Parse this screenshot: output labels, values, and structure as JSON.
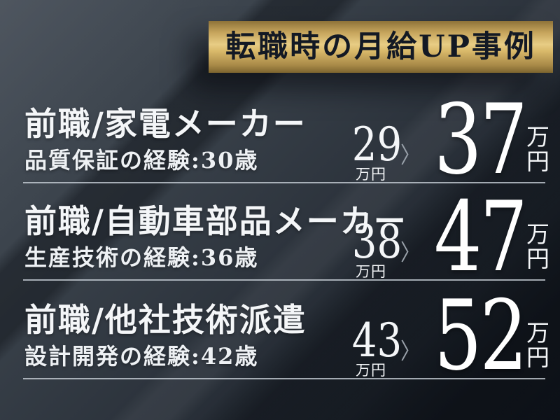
{
  "banner": {
    "title": "転職時の月給UP事例"
  },
  "arrow_glyph": "〉",
  "cases": [
    {
      "previous_job": "前職/家電メーカー",
      "experience": "品質保証の経験:30歳",
      "before_amount": "29",
      "before_unit": "万円",
      "after_amount": "37",
      "after_unit_top": "万",
      "after_unit_bottom": "円"
    },
    {
      "previous_job": "前職/自動車部品メーカー",
      "experience": "生産技術の経験:36歳",
      "before_amount": "38",
      "before_unit": "万円",
      "after_amount": "47",
      "after_unit_top": "万",
      "after_unit_bottom": "円"
    },
    {
      "previous_job": "前職/他社技術派遣",
      "experience": "設計開発の経験:42歳",
      "before_amount": "43",
      "before_unit": "万円",
      "after_amount": "52",
      "after_unit_top": "万",
      "after_unit_bottom": "円"
    }
  ],
  "colors": {
    "gold_light": "#e8cd84",
    "gold_dark": "#7d652f",
    "background_top_left": "#454d57",
    "background_bottom_right": "#12171f",
    "text_white": "#f4f6f8",
    "banner_text": "#131924",
    "divider": "#c7ced6",
    "arrow": "#99a1aa"
  }
}
